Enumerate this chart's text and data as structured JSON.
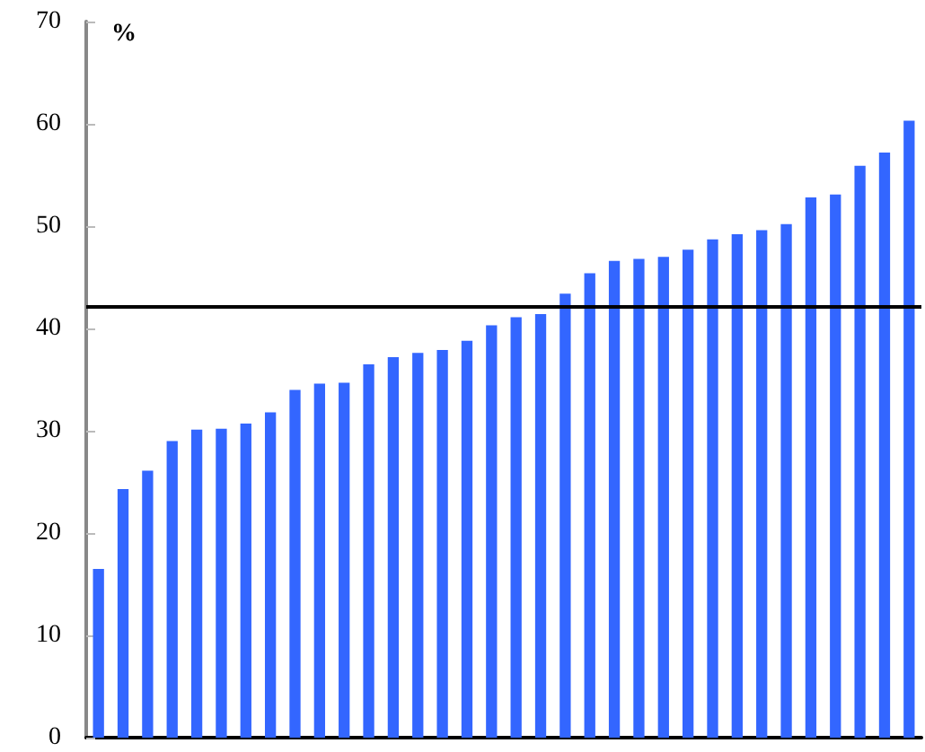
{
  "chart_data": {
    "type": "bar",
    "ylabel": "%",
    "categories": [
      null,
      null,
      null,
      null,
      null,
      null,
      null,
      null,
      null,
      null,
      null,
      null,
      null,
      null,
      null,
      null,
      null,
      null,
      null,
      null,
      null,
      null,
      null,
      null,
      null,
      null,
      null,
      null,
      null,
      null,
      null,
      null,
      null,
      null
    ],
    "values": [
      16.5,
      24.3,
      26.1,
      29,
      30.1,
      30.2,
      30.7,
      31.8,
      34,
      34.6,
      34.7,
      36.5,
      37.2,
      37.6,
      37.9,
      38.8,
      40.3,
      41.1,
      41.4,
      43.4,
      45.4,
      46.6,
      46.8,
      47,
      47.7,
      48.7,
      49.2,
      49.6,
      50.2,
      52.8,
      53.1,
      55.9,
      57.2,
      60.3
    ],
    "color": "#3366ff",
    "ylim": [
      0,
      70
    ],
    "yticks": [
      0,
      10,
      20,
      30,
      40,
      50,
      60,
      70
    ],
    "grid": false,
    "ref_lines": [
      {
        "axis": "y",
        "value": 42.1,
        "color": "#000000"
      }
    ]
  }
}
